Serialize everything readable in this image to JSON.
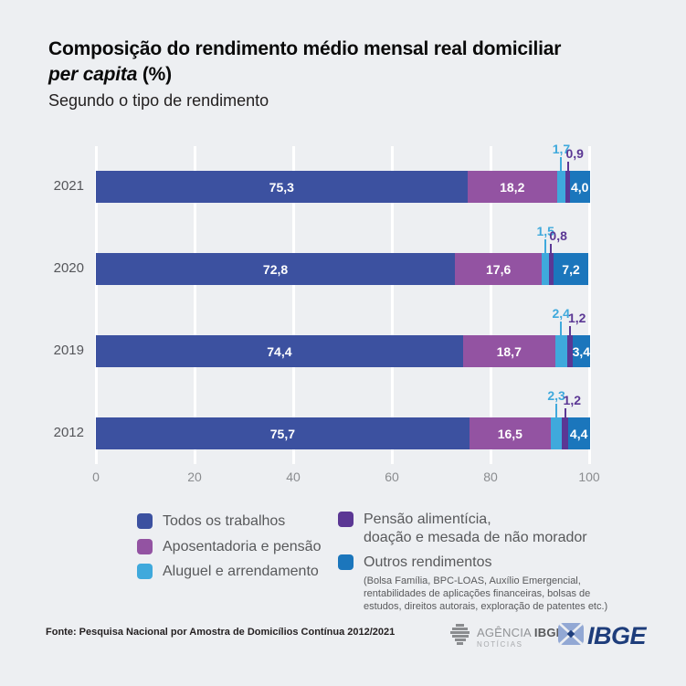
{
  "chart_data": {
    "type": "bar",
    "orientation": "horizontal",
    "stacked": true,
    "title": "Composição do rendimento médio mensal real domiciliar per capita (%)",
    "title_line1": "Composição do rendimento médio mensal real domiciliar",
    "title_line2_italic": "per capita",
    "title_line2_suffix": " (%)",
    "subtitle": "Segundo o tipo de rendimento",
    "categories": [
      "2021",
      "2020",
      "2019",
      "2012"
    ],
    "series": [
      {
        "name": "Todos os trabalhos",
        "color": "#3c51a0",
        "values": [
          75.3,
          72.8,
          74.4,
          75.7
        ]
      },
      {
        "name": "Aposentadoria e pensão",
        "color": "#9353a2",
        "values": [
          18.2,
          17.6,
          18.7,
          16.5
        ]
      },
      {
        "name": "Aluguel e arrendamento",
        "color": "#3fa9dc",
        "values": [
          1.7,
          1.5,
          2.4,
          2.3
        ]
      },
      {
        "name": "Pensão alimentícia, doação e mesada de não morador",
        "color": "#5b3794",
        "values": [
          0.9,
          0.8,
          1.2,
          1.2
        ]
      },
      {
        "name": "Outros rendimentos",
        "color": "#1b76bc",
        "values": [
          4.0,
          7.2,
          3.4,
          4.4
        ]
      }
    ],
    "xlim": [
      0,
      100
    ],
    "x_ticks": [
      0,
      20,
      40,
      60,
      80,
      100
    ],
    "grid": true,
    "decimal_separator": ",",
    "legend_position": "bottom"
  },
  "legend": {
    "column1": [
      {
        "label": "Todos os trabalhos",
        "color": "#3c51a0"
      },
      {
        "label": "Aposentadoria e pensão",
        "color": "#9353a2"
      },
      {
        "label": "Aluguel e arrendamento",
        "color": "#3fa9dc"
      }
    ],
    "column2": [
      {
        "label": "Pensão alimentícia,\ndoação e mesada de não morador",
        "color": "#5b3794"
      },
      {
        "label": "Outros rendimentos",
        "color": "#1b76bc",
        "note": "(Bolsa Família, BPC-LOAS, Auxílio Emergencial, rentabilidades de aplicações financeiras, bolsas de estudos, direitos autorais, exploração de patentes etc.)"
      }
    ]
  },
  "footer": {
    "source": "Fonte: Pesquisa Nacional por Amostra de Domicílios Contínua 2012/2021",
    "agencia_logo": {
      "word1": "AGÊNCIA",
      "word2": "IBGE",
      "line2": "NOTÍCIAS"
    },
    "ibge_logo_text": "IBGE"
  }
}
